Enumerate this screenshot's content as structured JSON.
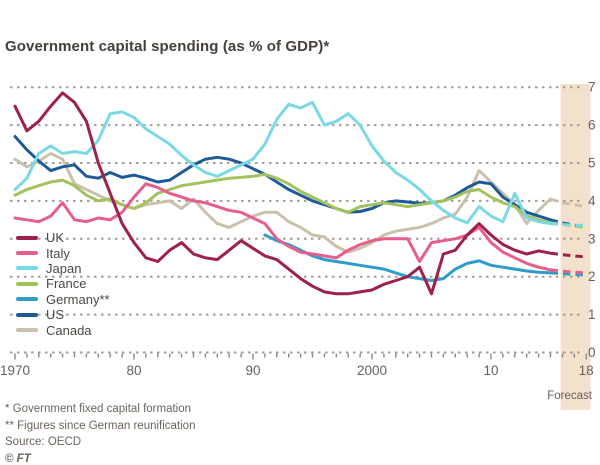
{
  "title": "Government capital spending (as % of GDP)*",
  "footnotes": [
    "* Government fixed capital formation",
    "** Figures since German reunification"
  ],
  "source": "Source: OECD",
  "credit": "© FT",
  "colors": {
    "background": "#ffffff",
    "forecast_band": "#f4e1cb",
    "grid": "#a49c93",
    "axis_text": "#66605c",
    "title_text": "#454039"
  },
  "chart_data": {
    "type": "line",
    "title": "Government capital spending (as % of GDP)*",
    "xlabel": "",
    "ylabel": "% of GDP",
    "xlim": [
      1969.6,
      2018.6
    ],
    "ylim": [
      0,
      7
    ],
    "y_ticks": [
      0,
      1,
      2,
      3,
      4,
      5,
      6,
      7
    ],
    "grid": "dotted-horizontal",
    "legend_position": "left-middle",
    "x_tick_labels": [
      {
        "x": 1970,
        "label": "1970"
      },
      {
        "x": 1980,
        "label": "80"
      },
      {
        "x": 1990,
        "label": "90"
      },
      {
        "x": 2000,
        "label": "2000"
      },
      {
        "x": 2010,
        "label": "10"
      },
      {
        "x": 2018,
        "label": "18"
      }
    ],
    "forecast": {
      "label": "Forecast",
      "band_start": 2016,
      "band_end": 2018,
      "dash_from": 2015
    },
    "x": [
      1970,
      1971,
      1972,
      1973,
      1974,
      1975,
      1976,
      1977,
      1978,
      1979,
      1980,
      1981,
      1982,
      1983,
      1984,
      1985,
      1986,
      1987,
      1988,
      1989,
      1990,
      1991,
      1992,
      1993,
      1994,
      1995,
      1996,
      1997,
      1998,
      1999,
      2000,
      2001,
      2002,
      2003,
      2004,
      2005,
      2006,
      2007,
      2008,
      2009,
      2010,
      2011,
      2012,
      2013,
      2014,
      2015,
      2016,
      2017,
      2018
    ],
    "series": [
      {
        "name": "UK",
        "color": "#9e2147",
        "values": [
          6.5,
          5.85,
          6.1,
          6.5,
          6.85,
          6.6,
          6.1,
          5.0,
          4.2,
          3.4,
          2.9,
          2.5,
          2.4,
          2.7,
          2.9,
          2.6,
          2.5,
          2.45,
          2.7,
          2.95,
          2.75,
          2.55,
          2.45,
          2.2,
          1.95,
          1.75,
          1.6,
          1.55,
          1.55,
          1.6,
          1.65,
          1.8,
          1.9,
          2.0,
          2.25,
          1.55,
          2.6,
          2.7,
          3.1,
          3.4,
          3.1,
          2.85,
          2.7,
          2.6,
          2.68,
          2.62,
          2.58,
          2.55,
          2.52
        ]
      },
      {
        "name": "Italy",
        "color": "#e85e8a",
        "values": [
          3.55,
          3.5,
          3.45,
          3.6,
          3.95,
          3.5,
          3.45,
          3.55,
          3.5,
          3.7,
          4.1,
          4.45,
          4.35,
          4.2,
          4.1,
          4.0,
          3.95,
          3.85,
          3.75,
          3.7,
          3.55,
          3.4,
          3.0,
          2.8,
          2.65,
          2.6,
          2.55,
          2.5,
          2.7,
          2.85,
          2.95,
          3.0,
          3.0,
          3.0,
          2.4,
          2.9,
          2.95,
          3.0,
          3.1,
          3.3,
          2.9,
          2.65,
          2.5,
          2.35,
          2.25,
          2.18,
          2.15,
          2.12,
          2.1
        ]
      },
      {
        "name": "Japan",
        "color": "#79d9e6",
        "values": [
          4.3,
          4.6,
          5.25,
          5.45,
          5.25,
          5.3,
          5.25,
          5.6,
          6.3,
          6.35,
          6.2,
          5.9,
          5.7,
          5.5,
          5.2,
          4.95,
          4.75,
          4.65,
          4.8,
          4.95,
          5.1,
          5.5,
          6.15,
          6.55,
          6.45,
          6.6,
          6.0,
          6.1,
          6.3,
          6.0,
          5.45,
          5.05,
          4.75,
          4.55,
          4.3,
          4.0,
          3.75,
          3.55,
          3.42,
          3.85,
          3.6,
          3.45,
          4.2,
          3.55,
          3.45,
          3.4,
          3.38,
          3.36,
          3.35
        ]
      },
      {
        "name": "France",
        "color": "#a2c25d",
        "values": [
          4.15,
          4.3,
          4.4,
          4.5,
          4.55,
          4.4,
          4.15,
          4.0,
          4.05,
          3.9,
          3.8,
          3.95,
          4.2,
          4.3,
          4.4,
          4.45,
          4.5,
          4.55,
          4.6,
          4.62,
          4.65,
          4.7,
          4.6,
          4.45,
          4.25,
          4.1,
          3.95,
          3.8,
          3.7,
          3.85,
          3.9,
          3.95,
          3.9,
          3.85,
          3.9,
          3.95,
          4.0,
          4.1,
          4.25,
          4.3,
          4.1,
          3.95,
          3.85,
          3.6,
          3.5,
          3.42,
          3.38,
          3.34,
          3.3
        ]
      },
      {
        "name": "Germany**",
        "color": "#2f9cc9",
        "values": [
          null,
          null,
          null,
          null,
          null,
          null,
          null,
          null,
          null,
          null,
          null,
          null,
          null,
          null,
          null,
          null,
          null,
          null,
          null,
          null,
          null,
          3.1,
          2.95,
          2.85,
          2.7,
          2.55,
          2.45,
          2.4,
          2.35,
          2.3,
          2.25,
          2.2,
          2.1,
          2.0,
          1.95,
          1.9,
          1.95,
          2.2,
          2.35,
          2.42,
          2.3,
          2.25,
          2.2,
          2.15,
          2.12,
          2.1,
          2.08,
          2.06,
          2.05
        ]
      },
      {
        "name": "US",
        "color": "#1e5b96",
        "values": [
          5.7,
          5.35,
          5.05,
          4.8,
          4.9,
          4.95,
          4.65,
          4.6,
          4.75,
          4.62,
          4.68,
          4.6,
          4.5,
          4.55,
          4.75,
          4.95,
          5.1,
          5.15,
          5.1,
          5.0,
          4.85,
          4.7,
          4.5,
          4.3,
          4.15,
          4.0,
          3.9,
          3.8,
          3.7,
          3.72,
          3.8,
          3.95,
          4.0,
          3.97,
          3.94,
          3.95,
          4.0,
          4.15,
          4.35,
          4.5,
          4.45,
          4.1,
          3.9,
          3.7,
          3.6,
          3.5,
          3.42,
          3.36,
          3.3
        ]
      },
      {
        "name": "Canada",
        "color": "#cbc0ac",
        "values": [
          5.1,
          4.9,
          5.05,
          5.25,
          5.1,
          4.45,
          4.3,
          4.15,
          4.0,
          3.9,
          3.8,
          3.9,
          3.95,
          4.0,
          3.8,
          4.05,
          3.7,
          3.4,
          3.3,
          3.45,
          3.6,
          3.7,
          3.7,
          3.45,
          3.3,
          3.1,
          3.05,
          2.8,
          2.65,
          2.75,
          2.9,
          3.1,
          3.2,
          3.25,
          3.3,
          3.4,
          3.55,
          3.65,
          4.1,
          4.8,
          4.5,
          4.2,
          3.9,
          3.4,
          3.75,
          4.05,
          3.95,
          3.9,
          3.85
        ]
      }
    ]
  }
}
